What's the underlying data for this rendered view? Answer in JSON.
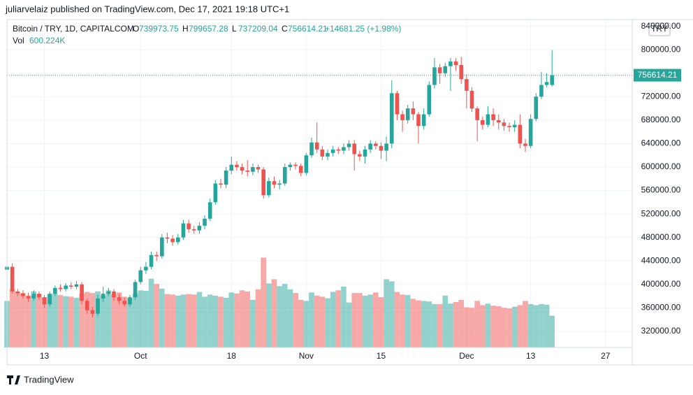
{
  "chart_data": {
    "type": "candlestick",
    "header": "juliarvelaiz published on TradingView.com, Dec 17, 2021 19:18 UTC+1",
    "symbol": "Bitcoin / TRY, 1D, CAPITALCOM",
    "ohlc_letters": [
      "O",
      "H",
      "L",
      "C"
    ],
    "change_label": "+14681.25 (+1.98%)",
    "vol_label": "Vol",
    "vol_value": "600.224K",
    "currency": "TRY",
    "footer": "TradingView",
    "up_color": "#26a69a",
    "down_color": "#ef5350",
    "x": [
      "2021-09-06",
      "2021-09-07",
      "2021-09-08",
      "2021-09-09",
      "2021-09-10",
      "2021-09-11",
      "2021-09-12",
      "2021-09-13",
      "2021-09-14",
      "2021-09-15",
      "2021-09-16",
      "2021-09-17",
      "2021-09-18",
      "2021-09-19",
      "2021-09-20",
      "2021-09-21",
      "2021-09-22",
      "2021-09-23",
      "2021-09-24",
      "2021-09-25",
      "2021-09-26",
      "2021-09-27",
      "2021-09-28",
      "2021-09-29",
      "2021-09-30",
      "2021-10-01",
      "2021-10-02",
      "2021-10-03",
      "2021-10-04",
      "2021-10-05",
      "2021-10-06",
      "2021-10-07",
      "2021-10-08",
      "2021-10-09",
      "2021-10-10",
      "2021-10-11",
      "2021-10-12",
      "2021-10-13",
      "2021-10-14",
      "2021-10-15",
      "2021-10-16",
      "2021-10-17",
      "2021-10-18",
      "2021-10-19",
      "2021-10-20",
      "2021-10-21",
      "2021-10-22",
      "2021-10-23",
      "2021-10-24",
      "2021-10-25",
      "2021-10-26",
      "2021-10-27",
      "2021-10-28",
      "2021-10-29",
      "2021-10-30",
      "2021-10-31",
      "2021-11-01",
      "2021-11-02",
      "2021-11-03",
      "2021-11-04",
      "2021-11-05",
      "2021-11-06",
      "2021-11-07",
      "2021-11-08",
      "2021-11-09",
      "2021-11-10",
      "2021-11-11",
      "2021-11-12",
      "2021-11-13",
      "2021-11-14",
      "2021-11-15",
      "2021-11-16",
      "2021-11-17",
      "2021-11-18",
      "2021-11-19",
      "2021-11-20",
      "2021-11-21",
      "2021-11-22",
      "2021-11-23",
      "2021-11-24",
      "2021-11-25",
      "2021-11-26",
      "2021-11-27",
      "2021-11-28",
      "2021-11-29",
      "2021-11-30",
      "2021-12-01",
      "2021-12-02",
      "2021-12-03",
      "2021-12-04",
      "2021-12-05",
      "2021-12-06",
      "2021-12-07",
      "2021-12-08",
      "2021-12-09",
      "2021-12-10",
      "2021-12-11",
      "2021-12-12",
      "2021-12-13",
      "2021-12-14",
      "2021-12-15",
      "2021-12-16",
      "2021-12-17"
    ],
    "series": [
      {
        "name": "Bitcoin / TRY",
        "open": [
          425000,
          430000,
          388000,
          385000,
          380000,
          376000,
          384000,
          378000,
          366000,
          384000,
          394000,
          392000,
          398000,
          396000,
          400000,
          372000,
          356000,
          350000,
          376000,
          384000,
          388000,
          378000,
          372000,
          366000,
          378000,
          404000,
          424000,
          430000,
          450000,
          448000,
          480000,
          478000,
          472000,
          480000,
          504000,
          494000,
          492000,
          500000,
          512000,
          540000,
          572000,
          570000,
          594000,
          604000,
          600000,
          594000,
          592000,
          600000,
          596000,
          552000,
          576000,
          570000,
          572000,
          600000,
          604000,
          602000,
          590000,
          620000,
          642000,
          630000,
          618000,
          624000,
          630000,
          628000,
          634000,
          640000,
          622000,
          618000,
          630000,
          640000,
          636000,
          628000,
          640000,
          726000,
          690000,
          680000,
          700000,
          690000,
          670000,
          690000,
          740000,
          770000,
          760000,
          772000,
          780000,
          774000,
          750000,
          730000,
          700000,
          680000,
          672000,
          690000,
          680000,
          676000,
          670000,
          668000,
          672000,
          640000,
          636000,
          682000,
          720000,
          740000,
          739973.75
        ],
        "high": [
          434000,
          436000,
          392000,
          390000,
          386000,
          390000,
          388000,
          382000,
          388000,
          398000,
          400000,
          402000,
          404000,
          406000,
          404000,
          376000,
          362000,
          382000,
          396000,
          394000,
          392000,
          384000,
          378000,
          382000,
          408000,
          430000,
          438000,
          456000,
          456000,
          486000,
          488000,
          484000,
          486000,
          510000,
          510000,
          500000,
          506000,
          518000,
          546000,
          578000,
          580000,
          600000,
          618000,
          610000,
          606000,
          612000,
          606000,
          604000,
          600000,
          582000,
          584000,
          578000,
          606000,
          608000,
          608000,
          606000,
          624000,
          650000,
          676000,
          636000,
          630000,
          636000,
          634000,
          640000,
          646000,
          646000,
          628000,
          636000,
          646000,
          644000,
          642000,
          652000,
          748000,
          730000,
          696000,
          706000,
          712000,
          694000,
          700000,
          746000,
          786000,
          776000,
          778000,
          786000,
          786000,
          788000,
          758000,
          736000,
          704000,
          686000,
          704000,
          700000,
          690000,
          682000,
          676000,
          680000,
          690000,
          648000,
          690000,
          726000,
          762000,
          760000,
          799657.28
        ],
        "low": [
          420000,
          384000,
          380000,
          376000,
          370000,
          372000,
          374000,
          360000,
          362000,
          380000,
          388000,
          388000,
          392000,
          392000,
          366000,
          350000,
          344000,
          346000,
          370000,
          380000,
          372000,
          366000,
          362000,
          362000,
          374000,
          400000,
          418000,
          426000,
          440000,
          444000,
          470000,
          466000,
          468000,
          476000,
          488000,
          486000,
          486000,
          494000,
          508000,
          536000,
          564000,
          564000,
          588000,
          594000,
          588000,
          584000,
          586000,
          590000,
          546000,
          548000,
          564000,
          562000,
          568000,
          594000,
          596000,
          584000,
          586000,
          616000,
          624000,
          612000,
          612000,
          618000,
          622000,
          622000,
          628000,
          594000,
          610000,
          606000,
          624000,
          630000,
          614000,
          610000,
          632000,
          680000,
          660000,
          674000,
          680000,
          640000,
          664000,
          686000,
          734000,
          742000,
          754000,
          730000,
          764000,
          742000,
          700000,
          694000,
          644000,
          664000,
          668000,
          670000,
          664000,
          662000,
          660000,
          660000,
          632000,
          626000,
          632000,
          678000,
          716000,
          736000,
          737209.04
        ],
        "close": [
          430000,
          388000,
          385000,
          380000,
          376000,
          384000,
          378000,
          366000,
          384000,
          394000,
          392000,
          398000,
          396000,
          400000,
          372000,
          356000,
          350000,
          376000,
          384000,
          388000,
          378000,
          372000,
          366000,
          378000,
          404000,
          424000,
          430000,
          450000,
          448000,
          480000,
          478000,
          472000,
          480000,
          504000,
          494000,
          492000,
          500000,
          512000,
          540000,
          572000,
          570000,
          594000,
          604000,
          600000,
          594000,
          592000,
          600000,
          596000,
          552000,
          576000,
          570000,
          572000,
          600000,
          604000,
          602000,
          590000,
          620000,
          642000,
          630000,
          618000,
          624000,
          630000,
          628000,
          634000,
          640000,
          622000,
          618000,
          630000,
          640000,
          636000,
          628000,
          640000,
          726000,
          690000,
          680000,
          700000,
          690000,
          670000,
          690000,
          740000,
          770000,
          760000,
          772000,
          780000,
          774000,
          750000,
          730000,
          700000,
          680000,
          672000,
          690000,
          680000,
          676000,
          670000,
          668000,
          672000,
          640000,
          636000,
          682000,
          720000,
          740000,
          745000,
          756614.21
        ],
        "volume": [
          880000,
          1100000,
          1050000,
          1020000,
          980000,
          1060000,
          1010000,
          950000,
          1000000,
          1020000,
          990000,
          970000,
          960000,
          940000,
          1020000,
          1050000,
          1030000,
          1060000,
          980000,
          1080000,
          1000000,
          1040000,
          960000,
          930000,
          1020000,
          1080000,
          1070000,
          1300000,
          1200000,
          1110000,
          1010000,
          1000000,
          980000,
          1000000,
          1010000,
          1000000,
          1050000,
          960000,
          1000000,
          980000,
          960000,
          940000,
          1040000,
          1020000,
          1080000,
          1060000,
          900000,
          1100000,
          1700000,
          1210000,
          1290000,
          1160000,
          1200000,
          1100000,
          1030000,
          900000,
          880000,
          1040000,
          980000,
          960000,
          930000,
          1050000,
          1080000,
          1150000,
          850000,
          1030000,
          1030000,
          980000,
          1000000,
          1040000,
          950000,
          1290000,
          1250000,
          1050000,
          1000000,
          990000,
          920000,
          890000,
          880000,
          870000,
          820000,
          820000,
          980000,
          830000,
          860000,
          900000,
          760000,
          750000,
          880000,
          800000,
          830000,
          790000,
          780000,
          750000,
          740000,
          770000,
          800000,
          880000,
          820000,
          800000,
          820000,
          810000,
          600224
        ]
      }
    ],
    "xlim": [
      "2021-09-06",
      "2022-01-01"
    ],
    "xticks": [
      {
        "value": "2021-09-13",
        "label": "13"
      },
      {
        "value": "2021-10-01",
        "label": "Oct"
      },
      {
        "value": "2021-10-18",
        "label": "18"
      },
      {
        "value": "2021-11-01",
        "label": "Nov"
      },
      {
        "value": "2021-11-15",
        "label": "15"
      },
      {
        "value": "2021-12-01",
        "label": "Dec"
      },
      {
        "value": "2021-12-13",
        "label": "13"
      },
      {
        "value": "2021-12-27",
        "label": "27"
      }
    ],
    "ylim": [
      292470,
      851470
    ],
    "yticks": [
      {
        "value": 320000,
        "label": "320000.00"
      },
      {
        "value": 360000,
        "label": "360000.00"
      },
      {
        "value": 400000,
        "label": "400000.00"
      },
      {
        "value": 440000,
        "label": "440000.00"
      },
      {
        "value": 480000,
        "label": "480000.00"
      },
      {
        "value": 520000,
        "label": "520000.00"
      },
      {
        "value": 560000,
        "label": "560000.00"
      },
      {
        "value": 600000,
        "label": "600000.00"
      },
      {
        "value": 640000,
        "label": "640000.00"
      },
      {
        "value": 680000,
        "label": "680000.00"
      },
      {
        "value": 720000,
        "label": "720000.00"
      },
      {
        "value": 760000,
        "label": "760000.00"
      },
      {
        "value": 800000,
        "label": "800000.00"
      },
      {
        "value": 840000,
        "label": "840000.00"
      }
    ],
    "volume_lim": [
      0,
      6200000
    ],
    "grid": true
  }
}
